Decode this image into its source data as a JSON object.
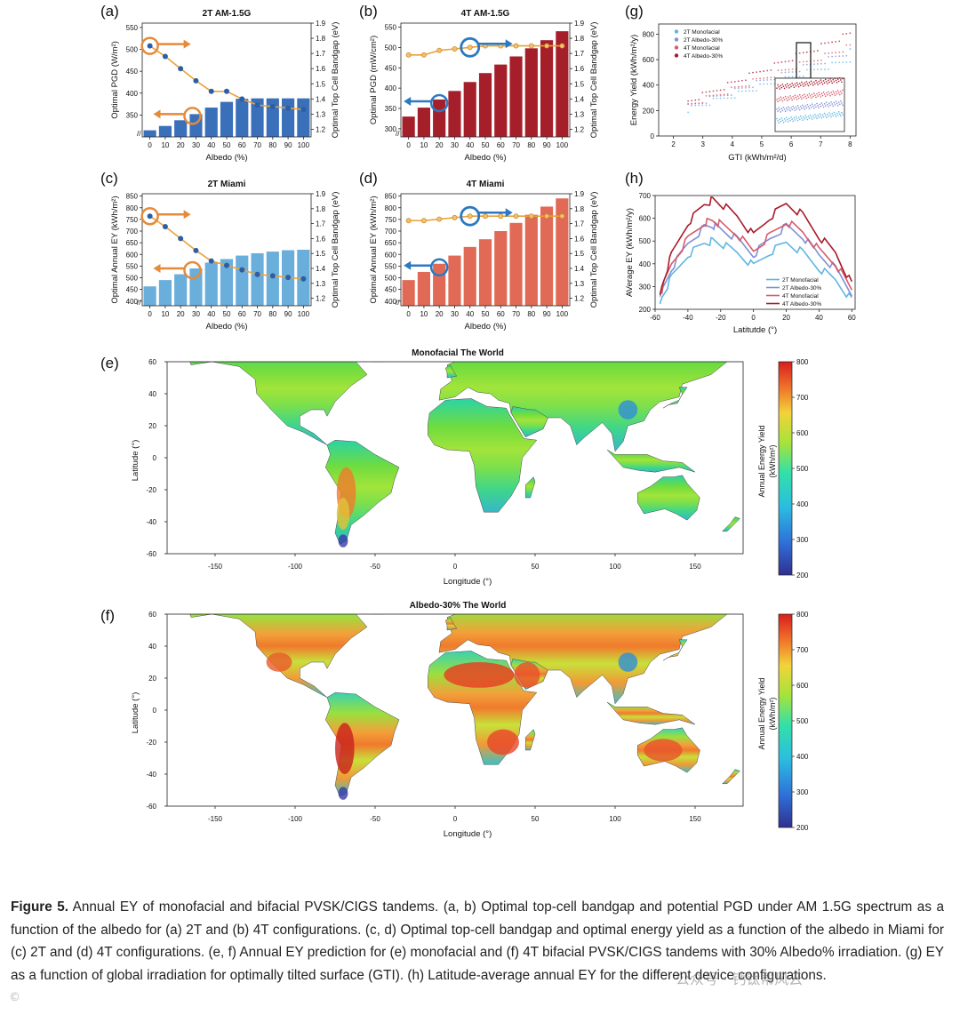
{
  "colors": {
    "blue_dark": "#3a70b9",
    "blue_light": "#6aaedb",
    "red_dark": "#a51f2a",
    "red_light": "#e06a55",
    "curve_line": "#e8a13a",
    "blue_dot": "#2a5ea8",
    "arrow_orange": "#e58a3a",
    "arrow_blue": "#2b79c2"
  },
  "panel_labels": {
    "a": "(a)",
    "b": "(b)",
    "c": "(c)",
    "d": "(d)",
    "e": "(e)",
    "f": "(f)",
    "g": "(g)",
    "h": "(h)"
  },
  "bar_panels": [
    {
      "id": "a",
      "title": "2T AM-1.5G",
      "ylabel": "Optimal PGD (W/m²)",
      "y2label": "Optimal Top Cell Bandgap (eV)",
      "xlabel": "Albedo (%)",
      "ymin": 300,
      "ymax": 560,
      "yticks": [
        "350",
        "400",
        "450",
        "500",
        "550"
      ],
      "y2min": 1.15,
      "y2max": 1.9,
      "y2ticks": [
        "1.2",
        "1.3",
        "1.4",
        "1.5",
        "1.6",
        "1.7",
        "1.8",
        "1.9"
      ],
      "xticks": [
        "0",
        "10",
        "20",
        "30",
        "40",
        "50",
        "60",
        "70",
        "80",
        "90",
        "100"
      ],
      "values": [
        315,
        325,
        338,
        352,
        367,
        380,
        387,
        388,
        388,
        388,
        388
      ],
      "bandgap": [
        1.75,
        1.68,
        1.6,
        1.52,
        1.45,
        1.45,
        1.4,
        1.36,
        1.35,
        1.34,
        1.33
      ],
      "curve_style": "blue"
    },
    {
      "id": "b",
      "title": "4T AM-1.5G",
      "ylabel": "Optimal PGD (mW/cm²)",
      "y2label": "Optimal Top Cell Bandgap (eV)",
      "xlabel": "Albedo (%)",
      "ymin": 280,
      "ymax": 560,
      "yticks": [
        "300",
        "350",
        "400",
        "450",
        "500",
        "550"
      ],
      "y2min": 1.15,
      "y2max": 1.9,
      "y2ticks": [
        "1.2",
        "1.3",
        "1.4",
        "1.5",
        "1.6",
        "1.7",
        "1.8",
        "1.9"
      ],
      "xticks": [
        "0",
        "10",
        "20",
        "30",
        "40",
        "50",
        "60",
        "70",
        "80",
        "90",
        "100"
      ],
      "values": [
        330,
        352,
        372,
        393,
        415,
        437,
        458,
        478,
        498,
        518,
        540
      ],
      "bandgap": [
        1.69,
        1.69,
        1.72,
        1.73,
        1.74,
        1.75,
        1.75,
        1.75,
        1.75,
        1.75,
        1.75
      ],
      "curve_style": "orange"
    },
    {
      "id": "c",
      "title": "2T Miami",
      "ylabel": "Optimal Annual EY (kWh/m²)",
      "y2label": "Optimal Top Cell Bandgap (eV)",
      "xlabel": "Albedo (%)",
      "ymin": 380,
      "ymax": 860,
      "yticks": [
        "400",
        "450",
        "500",
        "550",
        "600",
        "650",
        "700",
        "750",
        "800",
        "850"
      ],
      "y2min": 1.15,
      "y2max": 1.9,
      "y2ticks": [
        "1.2",
        "1.3",
        "1.4",
        "1.5",
        "1.6",
        "1.7",
        "1.8",
        "1.9"
      ],
      "xticks": [
        "0",
        "10",
        "20",
        "30",
        "40",
        "50",
        "60",
        "70",
        "80",
        "90",
        "100"
      ],
      "values": [
        463,
        490,
        515,
        540,
        565,
        580,
        595,
        605,
        612,
        618,
        620
      ],
      "bandgap": [
        1.75,
        1.68,
        1.6,
        1.52,
        1.45,
        1.42,
        1.39,
        1.36,
        1.35,
        1.34,
        1.33
      ],
      "curve_style": "blue"
    },
    {
      "id": "d",
      "title": "4T Miami",
      "ylabel": "Optimal Annual EY (kWh/m²)",
      "y2label": "Optimal Top Cell Bandgap (eV)",
      "xlabel": "Albedo (%)",
      "ymin": 380,
      "ymax": 860,
      "yticks": [
        "400",
        "450",
        "500",
        "550",
        "600",
        "650",
        "700",
        "750",
        "800",
        "850"
      ],
      "y2min": 1.15,
      "y2max": 1.9,
      "y2ticks": [
        "1.2",
        "1.3",
        "1.4",
        "1.5",
        "1.6",
        "1.7",
        "1.8",
        "1.9"
      ],
      "xticks": [
        "0",
        "10",
        "20",
        "30",
        "40",
        "50",
        "60",
        "70",
        "80",
        "90",
        "100"
      ],
      "values": [
        490,
        525,
        560,
        595,
        632,
        665,
        700,
        735,
        770,
        805,
        840
      ],
      "bandgap": [
        1.72,
        1.72,
        1.73,
        1.74,
        1.75,
        1.75,
        1.75,
        1.75,
        1.75,
        1.75,
        1.75
      ],
      "curve_style": "orange"
    }
  ],
  "chart_data": [
    {
      "type": "bar",
      "panel": "a",
      "title": "2T AM-1.5G",
      "categories": [
        "0",
        "10",
        "20",
        "30",
        "40",
        "50",
        "60",
        "70",
        "80",
        "90",
        "100"
      ],
      "values": [
        315,
        325,
        338,
        352,
        367,
        380,
        387,
        388,
        388,
        388,
        388
      ],
      "xlabel": "Albedo (%)",
      "ylabel": "Optimal PGD (W/m²)",
      "ylim": [
        300,
        560
      ]
    },
    {
      "type": "bar",
      "panel": "b",
      "title": "4T AM-1.5G",
      "categories": [
        "0",
        "10",
        "20",
        "30",
        "40",
        "50",
        "60",
        "70",
        "80",
        "90",
        "100"
      ],
      "values": [
        330,
        352,
        372,
        393,
        415,
        437,
        458,
        478,
        498,
        518,
        540
      ],
      "xlabel": "Albedo (%)",
      "ylabel": "Optimal PGD (mW/cm²)",
      "ylim": [
        280,
        560
      ]
    },
    {
      "type": "bar",
      "panel": "c",
      "title": "2T Miami",
      "categories": [
        "0",
        "10",
        "20",
        "30",
        "40",
        "50",
        "60",
        "70",
        "80",
        "90",
        "100"
      ],
      "values": [
        463,
        490,
        515,
        540,
        565,
        580,
        595,
        605,
        612,
        618,
        620
      ],
      "xlabel": "Albedo (%)",
      "ylabel": "Optimal Annual EY (kWh/m²)",
      "ylim": [
        380,
        860
      ]
    },
    {
      "type": "bar",
      "panel": "d",
      "title": "4T Miami",
      "categories": [
        "0",
        "10",
        "20",
        "30",
        "40",
        "50",
        "60",
        "70",
        "80",
        "90",
        "100"
      ],
      "values": [
        490,
        525,
        560,
        595,
        632,
        665,
        700,
        735,
        770,
        805,
        840
      ],
      "xlabel": "Albedo (%)",
      "ylabel": "Optimal Annual EY (kWh/m²)",
      "ylim": [
        380,
        860
      ]
    },
    {
      "type": "scatter",
      "panel": "g",
      "xlabel": "GTI (kWh/m²/d)",
      "ylabel": "Energy Yield (kWh/m²/y)",
      "xlim": [
        1.5,
        8.2
      ],
      "ylim": [
        0,
        880
      ],
      "xticks": [
        "2",
        "3",
        "4",
        "5",
        "6",
        "7",
        "8"
      ],
      "yticks": [
        "0",
        "200",
        "400",
        "600",
        "800"
      ],
      "series": [
        {
          "name": "2T Monofacial",
          "color": "#5fb6e0",
          "x": [
            2.5,
            8
          ],
          "y": [
            210,
            600
          ]
        },
        {
          "name": "2T Albedo-30%",
          "color": "#7f8fd6",
          "x": [
            2.5,
            8
          ],
          "y": [
            230,
            660
          ]
        },
        {
          "name": "4T Monofacial",
          "color": "#d65a6a",
          "x": [
            2.5,
            8
          ],
          "y": [
            240,
            700
          ]
        },
        {
          "name": "4T Albedo-30%",
          "color": "#a81b2b",
          "x": [
            2.5,
            8
          ],
          "y": [
            270,
            800
          ]
        }
      ]
    },
    {
      "type": "line",
      "panel": "h",
      "xlabel": "Latitutde (°)",
      "ylabel": "AVerage EY (kWh/m²/y)",
      "xlim": [
        -60,
        62
      ],
      "ylim": [
        200,
        700
      ],
      "xticks": [
        "-60",
        "-40",
        "-20",
        "0",
        "20",
        "40",
        "60"
      ],
      "yticks": [
        "200",
        "300",
        "400",
        "500",
        "600",
        "700"
      ],
      "x": [
        -57,
        -50,
        -40,
        -30,
        -25,
        -20,
        -10,
        0,
        10,
        20,
        30,
        40,
        50,
        60
      ],
      "series": [
        {
          "name": "2T Monofacial",
          "color": "#5fb6e0",
          "values": [
            240,
            340,
            440,
            490,
            500,
            490,
            450,
            390,
            450,
            495,
            450,
            380,
            330,
            240
          ]
        },
        {
          "name": "2T Albedo-30%",
          "color": "#7f8fd6",
          "values": [
            260,
            380,
            490,
            560,
            570,
            555,
            510,
            440,
            510,
            565,
            520,
            440,
            380,
            270
          ]
        },
        {
          "name": "4T Monofacial",
          "color": "#d65a6a",
          "values": [
            265,
            400,
            510,
            580,
            590,
            575,
            530,
            455,
            525,
            585,
            540,
            460,
            400,
            285
          ]
        },
        {
          "name": "4T Albedo-30%",
          "color": "#a81b2b",
          "values": [
            280,
            440,
            580,
            660,
            680,
            665,
            610,
            525,
            605,
            665,
            615,
            520,
            450,
            310
          ]
        }
      ]
    }
  ],
  "maps": [
    {
      "id": "e",
      "title": "Monofacial The World",
      "xlabel": "Longitude (°)",
      "ylabel": "Latitude (°)",
      "cbar_label1": "Annual Energy Yield",
      "cbar_label2": "(kWh/m²)",
      "xticks": [
        "-150",
        "-100",
        "-50",
        "0",
        "50",
        "100",
        "150"
      ],
      "yticks": [
        "60",
        "40",
        "20",
        "0",
        "-20",
        "-40",
        "-60"
      ],
      "cbar_ticks": [
        "800",
        "700",
        "600",
        "500",
        "400",
        "300",
        "200"
      ]
    },
    {
      "id": "f",
      "title": "Albedo-30% The World",
      "xlabel": "Longitude (°)",
      "ylabel": "Latitude (°)",
      "cbar_label1": "Annual Energy Yield",
      "cbar_label2": "(kWh/m²)",
      "xticks": [
        "-150",
        "-100",
        "-50",
        "0",
        "50",
        "100",
        "150"
      ],
      "yticks": [
        "60",
        "40",
        "20",
        "0",
        "-20",
        "-40",
        "-60"
      ],
      "cbar_ticks": [
        "800",
        "700",
        "600",
        "500",
        "400",
        "300",
        "200"
      ]
    }
  ],
  "caption": {
    "label": "Figure 5.",
    "text": " Annual EY of monofacial and bifacial PVSK/CIGS tandems. (a, b) Optimal top-cell bandgap and potential PGD under AM 1.5G spectrum as a function of the albedo for (a) 2T and (b) 4T configurations. (c, d) Optimal top-cell bandgap and optimal energy yield as a function of the albedo in Miami for (c) 2T and (d) 4T configurations. (e, f) Annual EY prediction for (e) monofacial and (f) 4T bifacial PVSK/CIGS tandems with 30% Albedo% irradiation. (g) EY as a function of global irradiation for optimally tilted surface (GTI). (h) Latitude-average annual EY for the different device configurations."
  },
  "watermark": "公众号 · 钙钛帮风云"
}
